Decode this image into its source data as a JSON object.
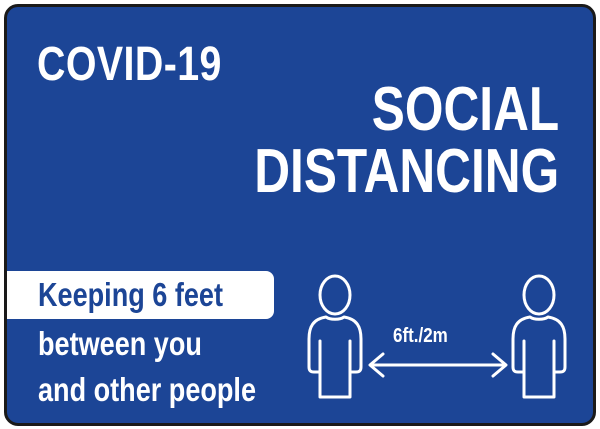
{
  "sign": {
    "title": "COVID-19",
    "heading_line1": "SOCIAL",
    "heading_line2": "DISTANCING",
    "highlight": "Keeping 6 feet",
    "subtext_line1": "between you",
    "subtext_line2": "and other people",
    "distance": "6ft./2m"
  },
  "colors": {
    "background": "#1c4596",
    "text": "#ffffff",
    "border": "#1a1a1a"
  },
  "icons": {
    "left": "person-outline-icon",
    "right": "person-outline-icon",
    "arrow": "double-arrow-icon"
  }
}
